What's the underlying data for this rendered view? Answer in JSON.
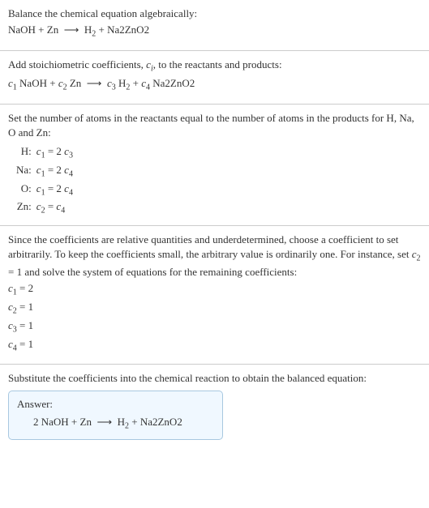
{
  "section1": {
    "line1": "Balance the chemical equation algebraically:",
    "eq_lhs1": "NaOH + Zn",
    "arrow": "⟶",
    "eq_rhs1_a": "H",
    "eq_rhs1_b": " + Na2ZnO2"
  },
  "section2": {
    "line1_a": "Add stoichiometric coefficients, ",
    "line1_b": "c",
    "line1_c": ", to the reactants and products:",
    "eq_c1": "c",
    "eq_t1": " NaOH + ",
    "eq_c2": "c",
    "eq_t2": " Zn",
    "arrow": "⟶",
    "eq_c3": "c",
    "eq_t3": " H",
    "eq_t3b": " + ",
    "eq_c4": "c",
    "eq_t4": " Na2ZnO2"
  },
  "section3": {
    "line1": "Set the number of atoms in the reactants equal to the number of atoms in the products for H, Na, O and Zn:",
    "rows": [
      {
        "label": "H:",
        "lhs": "c",
        "lsub": "1",
        "mid": " = 2 ",
        "rhs": "c",
        "rsub": "3"
      },
      {
        "label": "Na:",
        "lhs": "c",
        "lsub": "1",
        "mid": " = 2 ",
        "rhs": "c",
        "rsub": "4"
      },
      {
        "label": "O:",
        "lhs": "c",
        "lsub": "1",
        "mid": " = 2 ",
        "rhs": "c",
        "rsub": "4"
      },
      {
        "label": "Zn:",
        "lhs": "c",
        "lsub": "2",
        "mid": " = ",
        "rhs": "c",
        "rsub": "4"
      }
    ]
  },
  "section4": {
    "line1_a": "Since the coefficients are relative quantities and underdetermined, choose a coefficient to set arbitrarily. To keep the coefficients small, the arbitrary value is ordinarily one. For instance, set ",
    "line1_b": "c",
    "line1_c": " = 1 and solve the system of equations for the remaining coefficients:",
    "coefs": [
      {
        "c": "c",
        "sub": "1",
        "val": " = 2"
      },
      {
        "c": "c",
        "sub": "2",
        "val": " = 1"
      },
      {
        "c": "c",
        "sub": "3",
        "val": " = 1"
      },
      {
        "c": "c",
        "sub": "4",
        "val": " = 1"
      }
    ]
  },
  "section5": {
    "line1": "Substitute the coefficients into the chemical reaction to obtain the balanced equation:",
    "answer_title": "Answer:",
    "answer_a": "2 NaOH + Zn",
    "arrow": "⟶",
    "answer_b1": "H",
    "answer_b2": " + Na2ZnO2"
  },
  "subs": {
    "i": "i",
    "n1": "1",
    "n2": "2",
    "n3": "3",
    "n4": "4"
  }
}
